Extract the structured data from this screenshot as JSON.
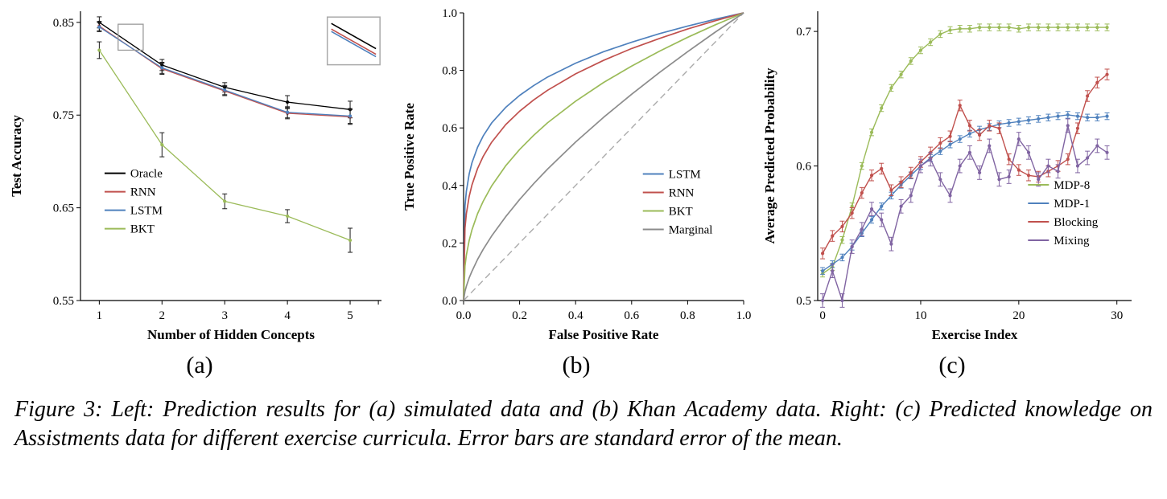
{
  "caption": "Figure 3: Left: Prediction results for (a) simulated data and (b) Khan Academy data. Right: (c) Predicted knowledge on Assistments data for different exercise curricula. Error bars are standard error of the mean.",
  "subplots": [
    {
      "label": "(a)"
    },
    {
      "label": "(b)"
    },
    {
      "label": "(c)"
    }
  ],
  "colors": {
    "black": "#000000",
    "red": "#C0504D",
    "blue": "#4F81BD",
    "green": "#9BBB59",
    "purple": "#8064A2",
    "gray": "#8C8C8C",
    "diagonal": "#ABABAB"
  },
  "chart_data": [
    {
      "id": "a",
      "type": "line",
      "xlabel": "Number of Hidden Concepts",
      "ylabel": "Test Accuracy",
      "xlim": [
        0.7,
        5.5
      ],
      "ylim": [
        0.55,
        0.862
      ],
      "xticks": [
        1,
        2,
        3,
        4,
        5,
        5.45
      ],
      "xtick_labels": [
        "1",
        "2",
        "3",
        "4",
        "5",
        ""
      ],
      "yticks": [
        0.55,
        0.65,
        0.75,
        0.85
      ],
      "ytick_labels": [
        "0.55",
        "0.65",
        "0.75",
        "0.85"
      ],
      "legend": {
        "fx": 0.08,
        "fy": 0.56
      },
      "series": [
        {
          "name": "Oracle",
          "color": "#000000",
          "err_color": "#1A1A1A",
          "markers": true,
          "x": [
            1,
            2,
            3,
            4,
            5
          ],
          "y": [
            0.85,
            0.804,
            0.78,
            0.764,
            0.756
          ],
          "err": [
            0.006,
            0.006,
            0.005,
            0.007,
            0.009
          ]
        },
        {
          "name": "RNN",
          "color": "#C0504D",
          "err_color": "#1A1A1A",
          "markers": true,
          "x": [
            1,
            2,
            3,
            4,
            5
          ],
          "y": [
            0.846,
            0.8,
            0.776,
            0.752,
            0.748
          ],
          "err": [
            0.005,
            0.006,
            0.005,
            0.006,
            0.008
          ]
        },
        {
          "name": "LSTM",
          "color": "#4F81BD",
          "err_color": "#1A1A1A",
          "markers": true,
          "x": [
            1,
            2,
            3,
            4,
            5
          ],
          "y": [
            0.845,
            0.801,
            0.777,
            0.753,
            0.749
          ],
          "err": [
            0.005,
            0.006,
            0.005,
            0.006,
            0.008
          ]
        },
        {
          "name": "BKT",
          "color": "#9BBB59",
          "err_color": "#1A1A1A",
          "markers": true,
          "x": [
            1,
            2,
            3,
            4,
            5
          ],
          "y": [
            0.82,
            0.718,
            0.657,
            0.641,
            0.615
          ],
          "err": [
            0.009,
            0.013,
            0.008,
            0.007,
            0.013
          ]
        }
      ],
      "inset": {
        "source_box": {
          "x0": 1.3,
          "x1": 1.7,
          "y0": 0.82,
          "y1": 0.848
        },
        "zoom_box": {
          "fx0": 0.82,
          "fy0": 0.02,
          "fx1": 0.995,
          "fy1": 0.185
        },
        "line_colors": [
          "#000000",
          "#C0504D",
          "#4F81BD"
        ]
      }
    },
    {
      "id": "b",
      "type": "line",
      "xlabel": "False Positive Rate",
      "ylabel": "True Positive Rate",
      "xlim": [
        0,
        1
      ],
      "ylim": [
        0,
        1
      ],
      "xticks": [
        0,
        0.2,
        0.4,
        0.6,
        0.8,
        1
      ],
      "xtick_labels": [
        "0.0",
        "0.2",
        "0.4",
        "0.6",
        "0.8",
        "1.0"
      ],
      "yticks": [
        0,
        0.2,
        0.4,
        0.6,
        0.8,
        1
      ],
      "ytick_labels": [
        "0.0",
        "0.2",
        "0.4",
        "0.6",
        "0.8",
        "1.0"
      ],
      "diagonal": true,
      "legend": {
        "fx": 0.64,
        "fy": 0.56
      },
      "series": [
        {
          "name": "LSTM",
          "color": "#4F81BD",
          "x": [
            0,
            0.005,
            0.01,
            0.02,
            0.03,
            0.05,
            0.07,
            0.1,
            0.15,
            0.2,
            0.25,
            0.3,
            0.4,
            0.5,
            0.6,
            0.7,
            0.8,
            0.9,
            1
          ],
          "y": [
            0,
            0.329,
            0.38,
            0.44,
            0.479,
            0.533,
            0.572,
            0.617,
            0.671,
            0.713,
            0.747,
            0.777,
            0.825,
            0.865,
            0.898,
            0.928,
            0.954,
            0.978,
            1
          ]
        },
        {
          "name": "RNN",
          "color": "#C0504D",
          "x": [
            0,
            0.005,
            0.01,
            0.02,
            0.03,
            0.05,
            0.07,
            0.1,
            0.15,
            0.2,
            0.25,
            0.3,
            0.4,
            0.5,
            0.6,
            0.7,
            0.8,
            0.9,
            1
          ],
          "y": [
            0,
            0.252,
            0.302,
            0.362,
            0.402,
            0.459,
            0.501,
            0.55,
            0.611,
            0.658,
            0.697,
            0.731,
            0.788,
            0.835,
            0.876,
            0.911,
            0.944,
            0.973,
            1
          ]
        },
        {
          "name": "BKT",
          "color": "#9BBB59",
          "x": [
            0,
            0.005,
            0.01,
            0.02,
            0.03,
            0.05,
            0.07,
            0.1,
            0.15,
            0.2,
            0.25,
            0.3,
            0.4,
            0.5,
            0.6,
            0.7,
            0.8,
            0.9,
            1
          ],
          "y": [
            0,
            0.12,
            0.158,
            0.209,
            0.246,
            0.302,
            0.345,
            0.398,
            0.468,
            0.525,
            0.574,
            0.618,
            0.693,
            0.758,
            0.815,
            0.867,
            0.915,
            0.959,
            1
          ]
        },
        {
          "name": "Marginal",
          "color": "#8C8C8C",
          "x": [
            0,
            0.005,
            0.01,
            0.02,
            0.03,
            0.05,
            0.07,
            0.1,
            0.15,
            0.2,
            0.25,
            0.3,
            0.4,
            0.5,
            0.6,
            0.7,
            0.8,
            0.9,
            1
          ],
          "y": [
            0,
            0.032,
            0.05,
            0.079,
            0.102,
            0.143,
            0.178,
            0.224,
            0.291,
            0.351,
            0.406,
            0.457,
            0.551,
            0.637,
            0.717,
            0.793,
            0.865,
            0.934,
            1
          ]
        }
      ]
    },
    {
      "id": "c",
      "type": "line",
      "xlabel": "Exercise Index",
      "ylabel": "Average Predicted Probability",
      "xlim": [
        -0.5,
        31.5
      ],
      "ylim": [
        0.5,
        0.715
      ],
      "xticks": [
        0,
        10,
        20,
        30
      ],
      "xtick_labels": [
        "0",
        "10",
        "20",
        "30"
      ],
      "yticks": [
        0.5,
        0.6,
        0.7
      ],
      "ytick_labels": [
        "0.5",
        "0.6",
        "0.7"
      ],
      "legend": {
        "fx": 0.67,
        "fy": 0.6
      },
      "series": [
        {
          "name": "MDP-8",
          "color": "#9BBB59",
          "markers": true,
          "err": 0.0025,
          "x": [
            0,
            1,
            2,
            3,
            4,
            5,
            6,
            7,
            8,
            9,
            10,
            11,
            12,
            13,
            14,
            15,
            16,
            17,
            18,
            19,
            20,
            21,
            22,
            23,
            24,
            25,
            26,
            27,
            28,
            29
          ],
          "y": [
            0.52,
            0.525,
            0.545,
            0.57,
            0.6,
            0.625,
            0.643,
            0.658,
            0.668,
            0.678,
            0.686,
            0.692,
            0.698,
            0.701,
            0.702,
            0.702,
            0.703,
            0.703,
            0.703,
            0.703,
            0.702,
            0.703,
            0.703,
            0.703,
            0.703,
            0.703,
            0.703,
            0.703,
            0.703,
            0.703
          ]
        },
        {
          "name": "MDP-1",
          "color": "#4F81BD",
          "markers": true,
          "err": 0.0025,
          "x": [
            0,
            1,
            2,
            3,
            4,
            5,
            6,
            7,
            8,
            9,
            10,
            11,
            12,
            13,
            14,
            15,
            16,
            17,
            18,
            19,
            20,
            21,
            22,
            23,
            24,
            25,
            26,
            27,
            28,
            29
          ],
          "y": [
            0.522,
            0.527,
            0.532,
            0.54,
            0.55,
            0.56,
            0.57,
            0.578,
            0.586,
            0.593,
            0.6,
            0.606,
            0.611,
            0.616,
            0.62,
            0.624,
            0.627,
            0.629,
            0.631,
            0.632,
            0.633,
            0.634,
            0.635,
            0.636,
            0.637,
            0.638,
            0.637,
            0.636,
            0.636,
            0.637
          ]
        },
        {
          "name": "Blocking",
          "color": "#C0504D",
          "markers": true,
          "err": 0.004,
          "x": [
            0,
            1,
            2,
            3,
            4,
            5,
            6,
            7,
            8,
            9,
            10,
            11,
            12,
            13,
            14,
            15,
            16,
            17,
            18,
            19,
            20,
            21,
            22,
            23,
            24,
            25,
            26,
            27,
            28,
            29
          ],
          "y": [
            0.535,
            0.548,
            0.555,
            0.565,
            0.58,
            0.593,
            0.598,
            0.582,
            0.588,
            0.595,
            0.603,
            0.61,
            0.617,
            0.622,
            0.645,
            0.63,
            0.623,
            0.63,
            0.628,
            0.605,
            0.597,
            0.593,
            0.592,
            0.596,
            0.6,
            0.605,
            0.628,
            0.652,
            0.662,
            0.668
          ]
        },
        {
          "name": "Mixing",
          "color": "#8064A2",
          "markers": true,
          "err": 0.005,
          "x": [
            0,
            1,
            2,
            3,
            4,
            5,
            6,
            7,
            8,
            9,
            10,
            11,
            12,
            13,
            14,
            15,
            16,
            17,
            18,
            19,
            20,
            21,
            22,
            23,
            24,
            25,
            26,
            27,
            28,
            29
          ],
          "y": [
            0.5,
            0.522,
            0.5,
            0.54,
            0.553,
            0.568,
            0.56,
            0.542,
            0.57,
            0.578,
            0.6,
            0.605,
            0.59,
            0.578,
            0.6,
            0.61,
            0.595,
            0.615,
            0.59,
            0.592,
            0.62,
            0.61,
            0.59,
            0.6,
            0.596,
            0.63,
            0.6,
            0.606,
            0.615,
            0.61
          ]
        }
      ]
    }
  ]
}
